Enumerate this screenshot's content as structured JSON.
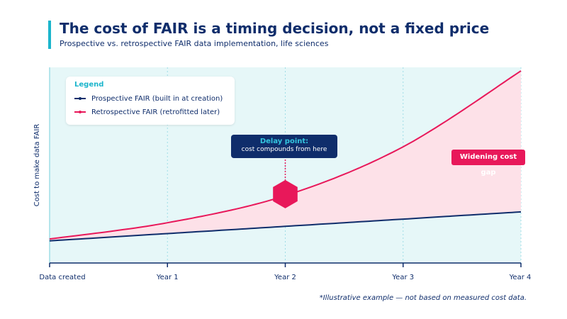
{
  "header": {
    "title": "The cost of FAIR is a timing decision, not a fixed price",
    "subtitle": "Prospective vs. retrospective FAIR data implementation, life sciences"
  },
  "chart_data": {
    "type": "line",
    "ylabel": "Cost to make data FAIR",
    "x_ticks": [
      "Data created",
      "Year 1",
      "Year 2",
      "Year 3",
      "Year 4"
    ],
    "xlim": [
      0,
      4
    ],
    "ylim": [
      0,
      100
    ],
    "y_axis_tick_labels": false,
    "grid": "vertical dotted",
    "series": [
      {
        "name": "Prospective FAIR (built in at creation)",
        "color": "#0f2d6b",
        "x": [
          0,
          1,
          2,
          3,
          4
        ],
        "y": [
          6,
          10,
          14,
          18,
          22
        ]
      },
      {
        "name": "Retrospective FAIR (retrofitted later)",
        "color": "#e8185a",
        "x": [
          0,
          1,
          2,
          3,
          4
        ],
        "y": [
          7,
          16,
          31,
          58,
          100
        ]
      }
    ],
    "fill_between": {
      "series": [
        "Prospective FAIR (built in at creation)",
        "Retrospective FAIR (retrofitted later)"
      ],
      "color": "#fde1e8"
    },
    "shaded_region_color": "#e6f7f8",
    "legend": {
      "title": "Legend",
      "placement": "top-left"
    },
    "annotations": {
      "delay_point": {
        "title": "Delay point:",
        "text": "cost compounds from here",
        "x": 2,
        "series": "Retrospective FAIR (retrofitted later)",
        "marker": "hexagon",
        "marker_color": "#e8185a",
        "box_color": "#0f2d6b"
      },
      "gap": {
        "text": "Widening cost gap",
        "color": "#e8185a"
      }
    }
  },
  "footnote": "*Illustrative example — not based on measured cost data."
}
